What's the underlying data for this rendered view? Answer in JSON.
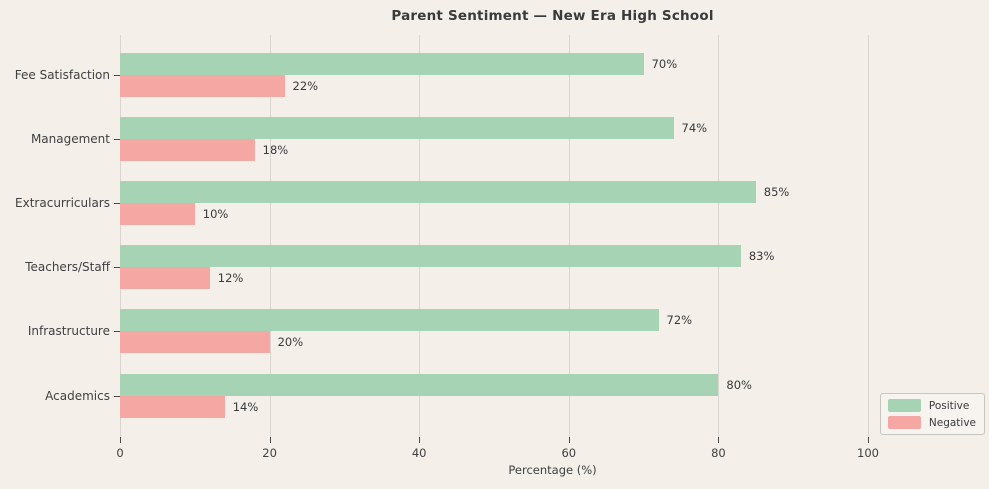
{
  "chart_data": {
    "type": "bar",
    "orientation": "horizontal",
    "title": "Parent Sentiment — New Era High School",
    "xlabel": "Percentage (%)",
    "ylabel": "",
    "categories": [
      "Fee Satisfaction",
      "Management",
      "Extracurriculars",
      "Teachers/Staff",
      "Infrastructure",
      "Academics"
    ],
    "series": [
      {
        "name": "Positive",
        "color": "#a5d3b4",
        "values": [
          70,
          74,
          85,
          83,
          72,
          80
        ]
      },
      {
        "name": "Negative",
        "color": "#f5a7a3",
        "values": [
          22,
          18,
          10,
          12,
          20,
          14
        ]
      }
    ],
    "value_label_format": "{v}%",
    "x_ticks": [
      0,
      20,
      40,
      60,
      80,
      100
    ],
    "xlim": [
      0,
      115.6
    ],
    "grid": true,
    "grid_axis": "x",
    "legend_position": "lower right"
  },
  "colors": {
    "background": "#f4efe9",
    "gridline": "#d9d5cf",
    "tick": "#4a4a4a",
    "text": "#3a3a3a",
    "legend_background": "#f7f3ee",
    "legend_border": "#c8c4bf"
  }
}
